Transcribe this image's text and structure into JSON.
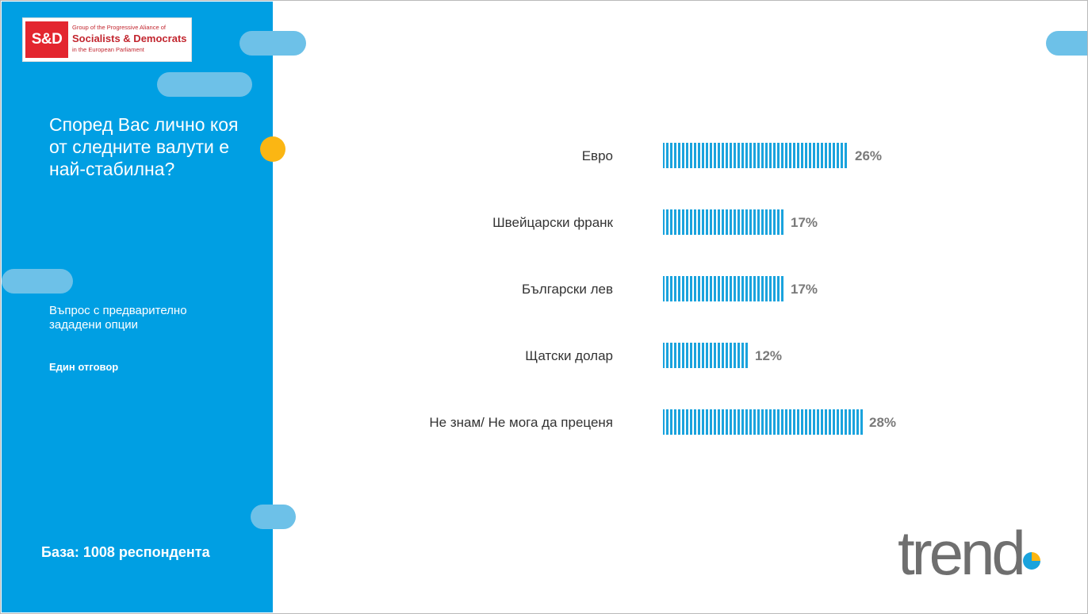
{
  "logo": {
    "mark": "S&D",
    "line1": "Group of the Progressive Aliance of",
    "line2": "Socialists & Democrats",
    "line3": "in the European Parliament"
  },
  "question": "Според Вас лично коя от следните валути е най-стабилна?",
  "question_type": "Въпрос с предварително зададени опции",
  "answer_mode": "Един отговор",
  "base": "База: 1008 респондента",
  "brand": "trend",
  "colors": {
    "panel": "#009fe3",
    "accent": "#fbb613",
    "bar": "#1aa3dd",
    "label": "#7a7a7a"
  },
  "chart_data": {
    "type": "bar",
    "orientation": "horizontal",
    "categories": [
      "Евро",
      "Швейцарски франк",
      "Български лев",
      "Щатски долар",
      "Не знам/ Не мога да преценя"
    ],
    "values": [
      26,
      17,
      17,
      12,
      28
    ],
    "value_labels": [
      "26%",
      "17%",
      "17%",
      "12%",
      "28%"
    ],
    "unit": "%",
    "xlim": [
      0,
      100
    ],
    "grid": false
  }
}
